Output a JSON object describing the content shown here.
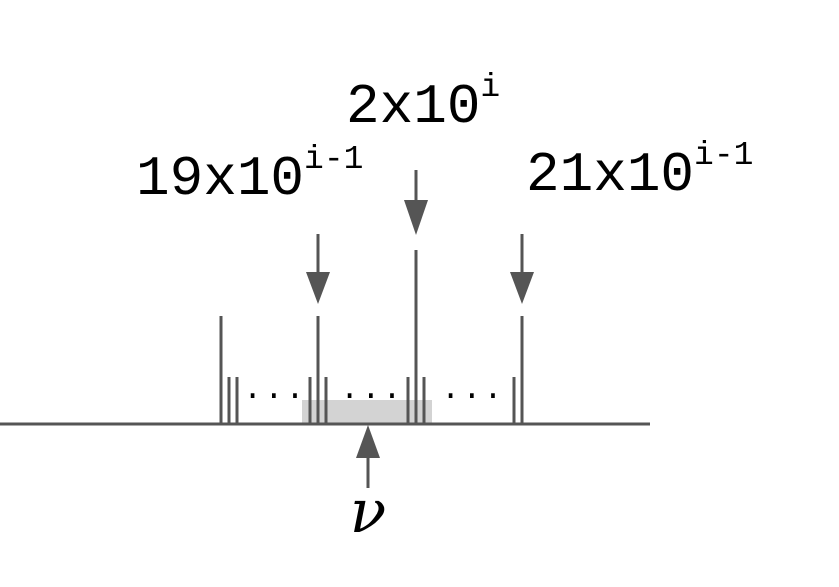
{
  "labels": {
    "left": {
      "base": "19x10",
      "exponent": "i-1"
    },
    "center": {
      "base": "2x10",
      "exponent": "i"
    },
    "right": {
      "base": "21x10",
      "exponent": "i-1"
    }
  },
  "ellipsis": {
    "first": "...",
    "second": "...",
    "third": "..."
  },
  "variable": "ν",
  "colors": {
    "line": "#555555",
    "interval": "#d3d3d3",
    "text": "#000000"
  }
}
